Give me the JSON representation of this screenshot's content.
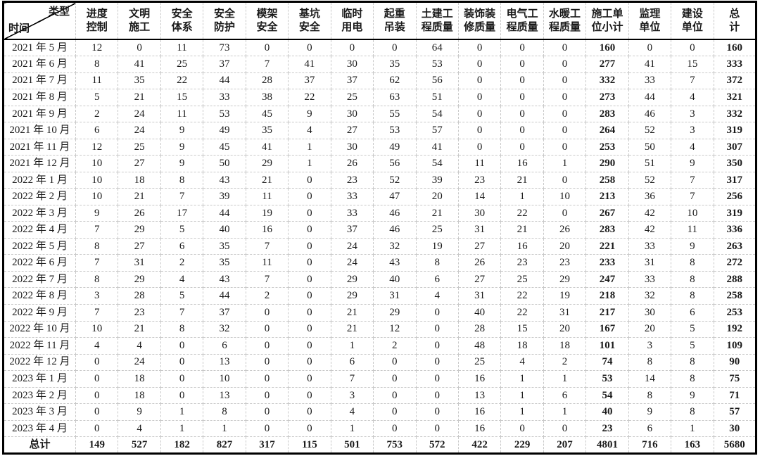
{
  "table": {
    "corner": {
      "top_right": "类型",
      "bottom_left": "时间"
    },
    "columns": [
      {
        "l1": "进度",
        "l2": "控制"
      },
      {
        "l1": "文明",
        "l2": "施工"
      },
      {
        "l1": "安全",
        "l2": "体系"
      },
      {
        "l1": "安全",
        "l2": "防护"
      },
      {
        "l1": "模架",
        "l2": "安全"
      },
      {
        "l1": "基坑",
        "l2": "安全"
      },
      {
        "l1": "临时",
        "l2": "用电"
      },
      {
        "l1": "起重",
        "l2": "吊装"
      },
      {
        "l1": "土建工",
        "l2": "程质量"
      },
      {
        "l1": "装饰装",
        "l2": "修质量"
      },
      {
        "l1": "电气工",
        "l2": "程质量"
      },
      {
        "l1": "水暖工",
        "l2": "程质量"
      },
      {
        "l1": "施工单",
        "l2": "位小计"
      },
      {
        "l1": "监理",
        "l2": "单位"
      },
      {
        "l1": "建设",
        "l2": "单位"
      },
      {
        "l1": "总",
        "l2": "计"
      }
    ],
    "bold_value_columns": [
      12,
      15
    ],
    "rows": [
      {
        "label": "2021 年 5 月",
        "values": [
          12,
          0,
          11,
          73,
          0,
          0,
          0,
          0,
          64,
          0,
          0,
          0,
          160,
          0,
          0,
          160
        ]
      },
      {
        "label": "2021 年 6 月",
        "values": [
          8,
          41,
          25,
          37,
          7,
          41,
          30,
          35,
          53,
          0,
          0,
          0,
          277,
          41,
          15,
          333
        ]
      },
      {
        "label": "2021 年 7 月",
        "values": [
          11,
          35,
          22,
          44,
          28,
          37,
          37,
          62,
          56,
          0,
          0,
          0,
          332,
          33,
          7,
          372
        ]
      },
      {
        "label": "2021 年 8 月",
        "values": [
          5,
          21,
          15,
          33,
          38,
          22,
          25,
          63,
          51,
          0,
          0,
          0,
          273,
          44,
          4,
          321
        ]
      },
      {
        "label": "2021 年 9 月",
        "values": [
          2,
          24,
          11,
          53,
          45,
          9,
          30,
          55,
          54,
          0,
          0,
          0,
          283,
          46,
          3,
          332
        ]
      },
      {
        "label": "2021 年 10 月",
        "values": [
          6,
          24,
          9,
          49,
          35,
          4,
          27,
          53,
          57,
          0,
          0,
          0,
          264,
          52,
          3,
          319
        ]
      },
      {
        "label": "2021 年 11 月",
        "values": [
          12,
          25,
          9,
          45,
          41,
          1,
          30,
          49,
          41,
          0,
          0,
          0,
          253,
          50,
          4,
          307
        ]
      },
      {
        "label": "2021 年 12 月",
        "values": [
          10,
          27,
          9,
          50,
          29,
          1,
          26,
          56,
          54,
          11,
          16,
          1,
          290,
          51,
          9,
          350
        ]
      },
      {
        "label": "2022 年 1 月",
        "values": [
          10,
          18,
          8,
          43,
          21,
          0,
          23,
          52,
          39,
          23,
          21,
          0,
          258,
          52,
          7,
          317
        ]
      },
      {
        "label": "2022 年 2 月",
        "values": [
          10,
          21,
          7,
          39,
          11,
          0,
          33,
          47,
          20,
          14,
          1,
          10,
          213,
          36,
          7,
          256
        ]
      },
      {
        "label": "2022 年 3 月",
        "values": [
          9,
          26,
          17,
          44,
          19,
          0,
          33,
          46,
          21,
          30,
          22,
          0,
          267,
          42,
          10,
          319
        ]
      },
      {
        "label": "2022 年 4 月",
        "values": [
          7,
          29,
          5,
          40,
          16,
          0,
          37,
          46,
          25,
          31,
          21,
          26,
          283,
          42,
          11,
          336
        ]
      },
      {
        "label": "2022 年 5 月",
        "values": [
          8,
          27,
          6,
          35,
          7,
          0,
          24,
          32,
          19,
          27,
          16,
          20,
          221,
          33,
          9,
          263
        ]
      },
      {
        "label": "2022 年 6 月",
        "values": [
          7,
          31,
          2,
          35,
          11,
          0,
          24,
          43,
          8,
          26,
          23,
          23,
          233,
          31,
          8,
          272
        ]
      },
      {
        "label": "2022 年 7 月",
        "values": [
          8,
          29,
          4,
          43,
          7,
          0,
          29,
          40,
          6,
          27,
          25,
          29,
          247,
          33,
          8,
          288
        ]
      },
      {
        "label": "2022 年 8 月",
        "values": [
          3,
          28,
          5,
          44,
          2,
          0,
          29,
          31,
          4,
          31,
          22,
          19,
          218,
          32,
          8,
          258
        ]
      },
      {
        "label": "2022 年 9 月",
        "values": [
          7,
          23,
          7,
          37,
          0,
          0,
          21,
          29,
          0,
          40,
          22,
          31,
          217,
          30,
          6,
          253
        ]
      },
      {
        "label": "2022 年 10 月",
        "values": [
          10,
          21,
          8,
          32,
          0,
          0,
          21,
          12,
          0,
          28,
          15,
          20,
          167,
          20,
          5,
          192
        ]
      },
      {
        "label": "2022 年 11 月",
        "values": [
          4,
          4,
          0,
          6,
          0,
          0,
          1,
          2,
          0,
          48,
          18,
          18,
          101,
          3,
          5,
          109
        ]
      },
      {
        "label": "2022 年 12 月",
        "values": [
          0,
          24,
          0,
          13,
          0,
          0,
          6,
          0,
          0,
          25,
          4,
          2,
          74,
          8,
          8,
          90
        ]
      },
      {
        "label": "2023 年 1 月",
        "values": [
          0,
          18,
          0,
          10,
          0,
          0,
          7,
          0,
          0,
          16,
          1,
          1,
          53,
          14,
          8,
          75
        ]
      },
      {
        "label": "2023 年 2 月",
        "values": [
          0,
          18,
          0,
          13,
          0,
          0,
          3,
          0,
          0,
          13,
          1,
          6,
          54,
          8,
          9,
          71
        ]
      },
      {
        "label": "2023 年 3 月",
        "values": [
          0,
          9,
          1,
          8,
          0,
          0,
          4,
          0,
          0,
          16,
          1,
          1,
          40,
          9,
          8,
          57
        ]
      },
      {
        "label": "2023 年 4 月",
        "values": [
          0,
          4,
          1,
          1,
          0,
          0,
          1,
          0,
          0,
          16,
          0,
          0,
          23,
          6,
          1,
          30
        ]
      }
    ],
    "total": {
      "label": "总计",
      "values": [
        149,
        527,
        182,
        827,
        317,
        115,
        501,
        753,
        572,
        422,
        229,
        207,
        4801,
        716,
        163,
        5680
      ]
    }
  },
  "colors": {
    "border_outer": "#000000",
    "grid_line": "#c9c9c9",
    "text": "#1a1a1a",
    "background": "#ffffff"
  }
}
